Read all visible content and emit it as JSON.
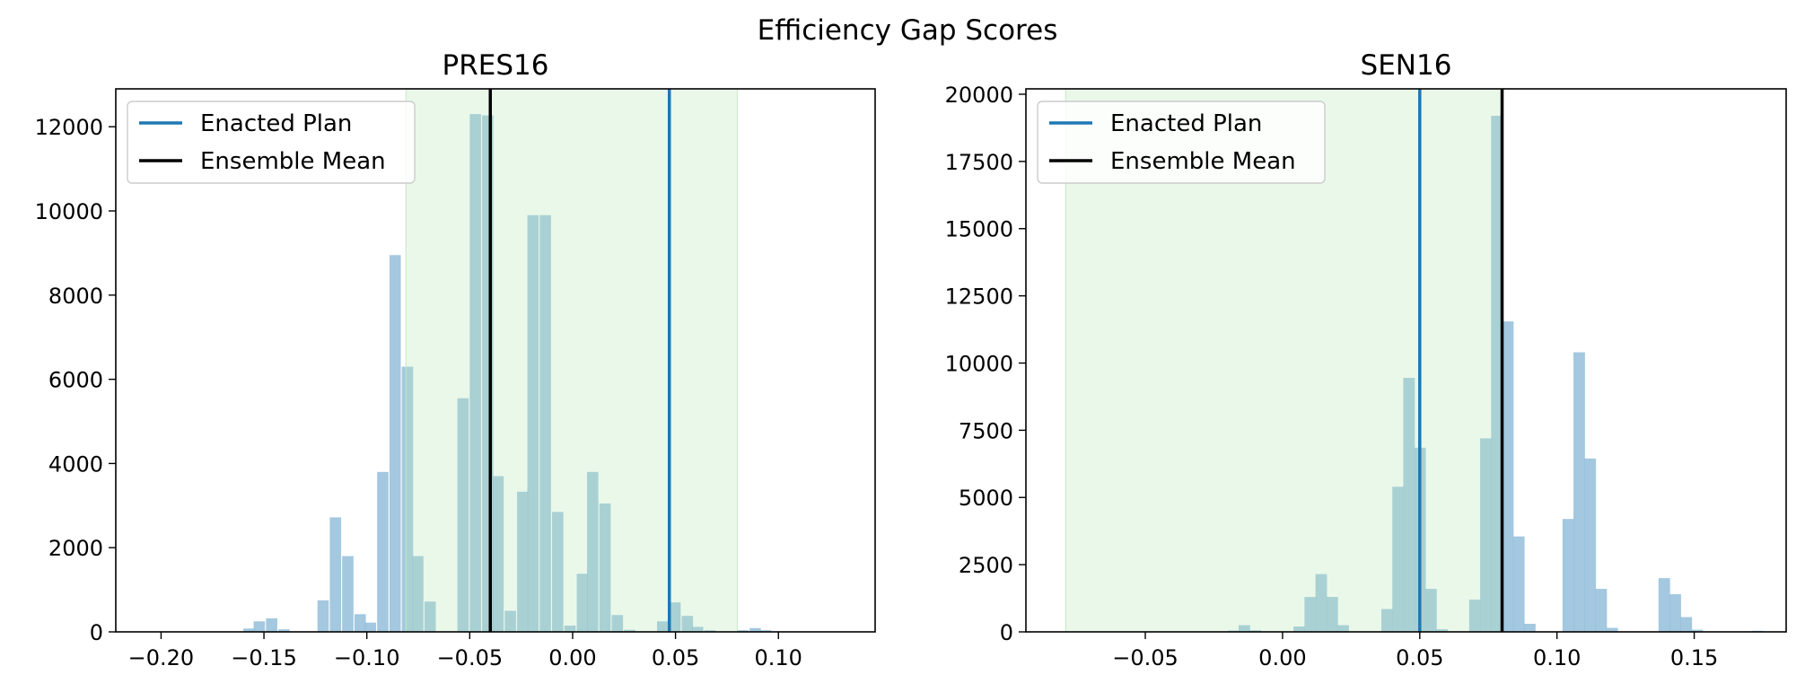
{
  "figure": {
    "suptitle": "Efficiency Gap Scores"
  },
  "colors": {
    "hist": "#8fbcd9",
    "band": "#e9f7e9",
    "band_edge": "#c3e8c3",
    "enacted": "#1f77b4",
    "mean": "#000000"
  },
  "chart_data": [
    {
      "type": "bar",
      "title": "PRES16",
      "xlabel": "",
      "ylabel": "",
      "xlim": [
        -0.222,
        0.147
      ],
      "ylim": [
        0,
        12900
      ],
      "xticks": [
        -0.2,
        -0.15,
        -0.1,
        -0.05,
        0.0,
        0.05,
        0.1
      ],
      "xtick_labels": [
        "−0.20",
        "−0.15",
        "−0.10",
        "−0.05",
        "0.00",
        "0.05",
        "0.10"
      ],
      "yticks": [
        0,
        2000,
        4000,
        6000,
        8000,
        10000,
        12000
      ],
      "ytick_labels": [
        "0",
        "2000",
        "4000",
        "6000",
        "8000",
        "10000",
        "12000"
      ],
      "bin_width": 0.0055,
      "bins": [
        [
          -0.16,
          80
        ],
        [
          -0.155,
          250
        ],
        [
          -0.149,
          320
        ],
        [
          -0.143,
          60
        ],
        [
          -0.124,
          750
        ],
        [
          -0.118,
          2720
        ],
        [
          -0.112,
          1800
        ],
        [
          -0.106,
          420
        ],
        [
          -0.101,
          220
        ],
        [
          -0.095,
          3800
        ],
        [
          -0.089,
          8950
        ],
        [
          -0.083,
          6300
        ],
        [
          -0.078,
          1800
        ],
        [
          -0.072,
          720
        ],
        [
          -0.056,
          5550
        ],
        [
          -0.05,
          12300
        ],
        [
          -0.044,
          12270
        ],
        [
          -0.039,
          3700
        ],
        [
          -0.033,
          500
        ],
        [
          -0.027,
          3330
        ],
        [
          -0.022,
          9900
        ],
        [
          -0.016,
          9900
        ],
        [
          -0.01,
          2850
        ],
        [
          -0.004,
          150
        ],
        [
          0.002,
          1380
        ],
        [
          0.007,
          3800
        ],
        [
          0.013,
          3050
        ],
        [
          0.019,
          400
        ],
        [
          0.025,
          50
        ],
        [
          0.041,
          250
        ],
        [
          0.047,
          700
        ],
        [
          0.053,
          380
        ],
        [
          0.058,
          120
        ],
        [
          0.064,
          40
        ],
        [
          0.08,
          40
        ],
        [
          0.086,
          90
        ],
        [
          0.091,
          40
        ]
      ],
      "band": [
        -0.081,
        0.08
      ],
      "enacted_plan": 0.047,
      "ensemble_mean": -0.04,
      "legend": {
        "position": "upper-left",
        "entries": [
          "Enacted Plan",
          "Ensemble Mean"
        ]
      }
    },
    {
      "type": "bar",
      "title": "SEN16",
      "xlabel": "",
      "ylabel": "",
      "xlim": [
        -0.0935,
        0.1835
      ],
      "ylim": [
        0,
        20200
      ],
      "xticks": [
        -0.05,
        0.0,
        0.05,
        0.1,
        0.15
      ],
      "xtick_labels": [
        "−0.05",
        "0.00",
        "0.05",
        "0.10",
        "0.15"
      ],
      "yticks": [
        0,
        2500,
        5000,
        7500,
        10000,
        12500,
        15000,
        17500,
        20000
      ],
      "ytick_labels": [
        "0",
        "2500",
        "5000",
        "7500",
        "10000",
        "12500",
        "15000",
        "17500",
        "20000"
      ],
      "bin_width": 0.0042,
      "bins": [
        [
          -0.02,
          50
        ],
        [
          -0.016,
          250
        ],
        [
          -0.012,
          60
        ],
        [
          0.004,
          200
        ],
        [
          0.008,
          1300
        ],
        [
          0.012,
          2150
        ],
        [
          0.016,
          1300
        ],
        [
          0.02,
          250
        ],
        [
          0.036,
          850
        ],
        [
          0.04,
          5400
        ],
        [
          0.044,
          9450
        ],
        [
          0.048,
          6850
        ],
        [
          0.052,
          1600
        ],
        [
          0.056,
          100
        ],
        [
          0.068,
          1200
        ],
        [
          0.072,
          7200
        ],
        [
          0.076,
          19200
        ],
        [
          0.08,
          11550
        ],
        [
          0.084,
          3550
        ],
        [
          0.088,
          300
        ],
        [
          0.102,
          4200
        ],
        [
          0.106,
          10400
        ],
        [
          0.11,
          6450
        ],
        [
          0.114,
          1600
        ],
        [
          0.118,
          150
        ],
        [
          0.137,
          2000
        ],
        [
          0.141,
          1400
        ],
        [
          0.145,
          550
        ],
        [
          0.149,
          80
        ],
        [
          0.171,
          40
        ]
      ],
      "band": [
        -0.079,
        0.08
      ],
      "enacted_plan": 0.05,
      "ensemble_mean": 0.08,
      "legend": {
        "position": "upper-left",
        "entries": [
          "Enacted Plan",
          "Ensemble Mean"
        ]
      }
    }
  ]
}
